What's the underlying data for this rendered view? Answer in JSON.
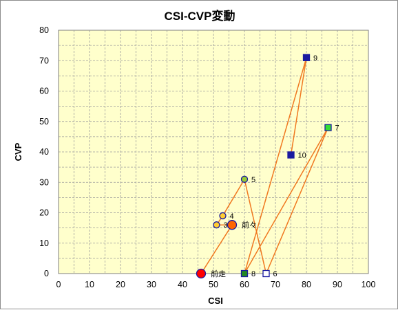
{
  "chart_data": {
    "type": "scatter",
    "title": "CSI-CVP変動",
    "xlabel": "CSI",
    "ylabel": "CVP",
    "xlim": [
      0,
      100
    ],
    "ylim": [
      0,
      80
    ],
    "xticks": [
      "0",
      "10",
      "20",
      "30",
      "40",
      "50",
      "60",
      "70",
      "80",
      "90",
      "100"
    ],
    "yticks": [
      "0",
      "10",
      "20",
      "30",
      "40",
      "50",
      "60",
      "70",
      "80"
    ],
    "grid": true,
    "plot_background": "#ffffcc",
    "line_color": "#f07820",
    "points": [
      {
        "label": "前走",
        "x": 46,
        "y": 0,
        "marker": "circle",
        "size": "large",
        "fill": "#ff0000",
        "stroke": "#1a1aa0"
      },
      {
        "label": "前々",
        "x": 56,
        "y": 16,
        "marker": "circle",
        "size": "large",
        "fill": "#ff6600",
        "stroke": "#1a1aa0"
      },
      {
        "label": "3",
        "x": 51,
        "y": 16,
        "marker": "circle",
        "size": "small",
        "fill": "#ffcc33",
        "stroke": "#1a1aa0"
      },
      {
        "label": "4",
        "x": 53,
        "y": 19,
        "marker": "circle",
        "size": "small",
        "fill": "#ffcc33",
        "stroke": "#1a1aa0"
      },
      {
        "label": "5",
        "x": 60,
        "y": 31,
        "marker": "circle",
        "size": "small",
        "fill": "#99cc33",
        "stroke": "#1a1aa0"
      },
      {
        "label": "6",
        "x": 67,
        "y": 0,
        "marker": "square",
        "size": "small",
        "fill": "#ffffff",
        "stroke": "#1a1aa0"
      },
      {
        "label": "7",
        "x": 87,
        "y": 48,
        "marker": "square",
        "size": "small",
        "fill": "#33dd33",
        "stroke": "#1a1aa0"
      },
      {
        "label": "8",
        "x": 60,
        "y": 0,
        "marker": "square",
        "size": "small",
        "fill": "#228822",
        "stroke": "#1a1aa0"
      },
      {
        "label": "9",
        "x": 80,
        "y": 71,
        "marker": "square",
        "size": "small",
        "fill": "#1a1aa0",
        "stroke": "#1a1aa0"
      },
      {
        "label": "10",
        "x": 75,
        "y": 39,
        "marker": "square",
        "size": "small",
        "fill": "#1a1aa0",
        "stroke": "#1a1aa0"
      }
    ],
    "path_order": [
      "前走",
      "前々",
      "3",
      "4",
      "5",
      "6",
      "7",
      "8",
      "9",
      "10"
    ]
  }
}
